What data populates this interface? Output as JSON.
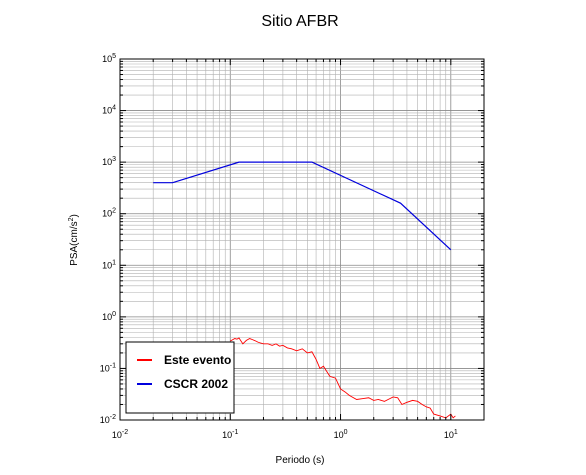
{
  "chart_data": {
    "type": "line",
    "title": "Sitio AFBR",
    "xlabel": "Periodo (s)",
    "ylabel_main": "PSA(cm/s",
    "ylabel_exp": "2",
    "ylabel_close": ")",
    "x_scale": "log",
    "y_scale": "log",
    "xlim": [
      0.01,
      20
    ],
    "ylim": [
      0.01,
      100000
    ],
    "grid": true,
    "legend_position": "bottom-left",
    "x_ticks": [
      {
        "base": "10",
        "exp": "-2"
      },
      {
        "base": "10",
        "exp": "-1"
      },
      {
        "base": "10",
        "exp": "0"
      },
      {
        "base": "10",
        "exp": "1"
      }
    ],
    "y_ticks": [
      {
        "base": "10",
        "exp": "-2"
      },
      {
        "base": "10",
        "exp": "-1"
      },
      {
        "base": "10",
        "exp": "0"
      },
      {
        "base": "10",
        "exp": "1"
      },
      {
        "base": "10",
        "exp": "2"
      },
      {
        "base": "10",
        "exp": "3"
      },
      {
        "base": "10",
        "exp": "4"
      },
      {
        "base": "10",
        "exp": "5"
      }
    ],
    "series": [
      {
        "name": "Este evento",
        "color": "#ff0000",
        "x": [
          0.1,
          0.105,
          0.11,
          0.115,
          0.12,
          0.13,
          0.14,
          0.15,
          0.16,
          0.17,
          0.18,
          0.2,
          0.22,
          0.24,
          0.26,
          0.28,
          0.3,
          0.33,
          0.36,
          0.4,
          0.45,
          0.5,
          0.55,
          0.6,
          0.65,
          0.7,
          0.8,
          0.9,
          1.0,
          1.1,
          1.2,
          1.4,
          1.6,
          1.8,
          2.0,
          2.2,
          2.5,
          2.8,
          3.0,
          3.3,
          3.6,
          4.0,
          4.5,
          5.0,
          5.5,
          6.0,
          6.5,
          7.0,
          8.0,
          9.0,
          10.0,
          10.5,
          11.0
        ],
        "y": [
          0.34,
          0.36,
          0.38,
          0.37,
          0.39,
          0.3,
          0.35,
          0.38,
          0.36,
          0.34,
          0.32,
          0.3,
          0.3,
          0.28,
          0.3,
          0.27,
          0.28,
          0.25,
          0.24,
          0.22,
          0.24,
          0.2,
          0.21,
          0.15,
          0.1,
          0.11,
          0.07,
          0.065,
          0.04,
          0.035,
          0.03,
          0.025,
          0.026,
          0.027,
          0.024,
          0.025,
          0.023,
          0.026,
          0.028,
          0.027,
          0.02,
          0.022,
          0.024,
          0.023,
          0.02,
          0.018,
          0.017,
          0.013,
          0.012,
          0.011,
          0.013,
          0.011,
          0.012
        ]
      },
      {
        "name": "CSCR 2002",
        "color": "#0000dd",
        "x": [
          0.02,
          0.03,
          0.12,
          0.55,
          3.5,
          10.0
        ],
        "y": [
          400,
          400,
          1000,
          1000,
          160,
          20
        ]
      }
    ]
  }
}
